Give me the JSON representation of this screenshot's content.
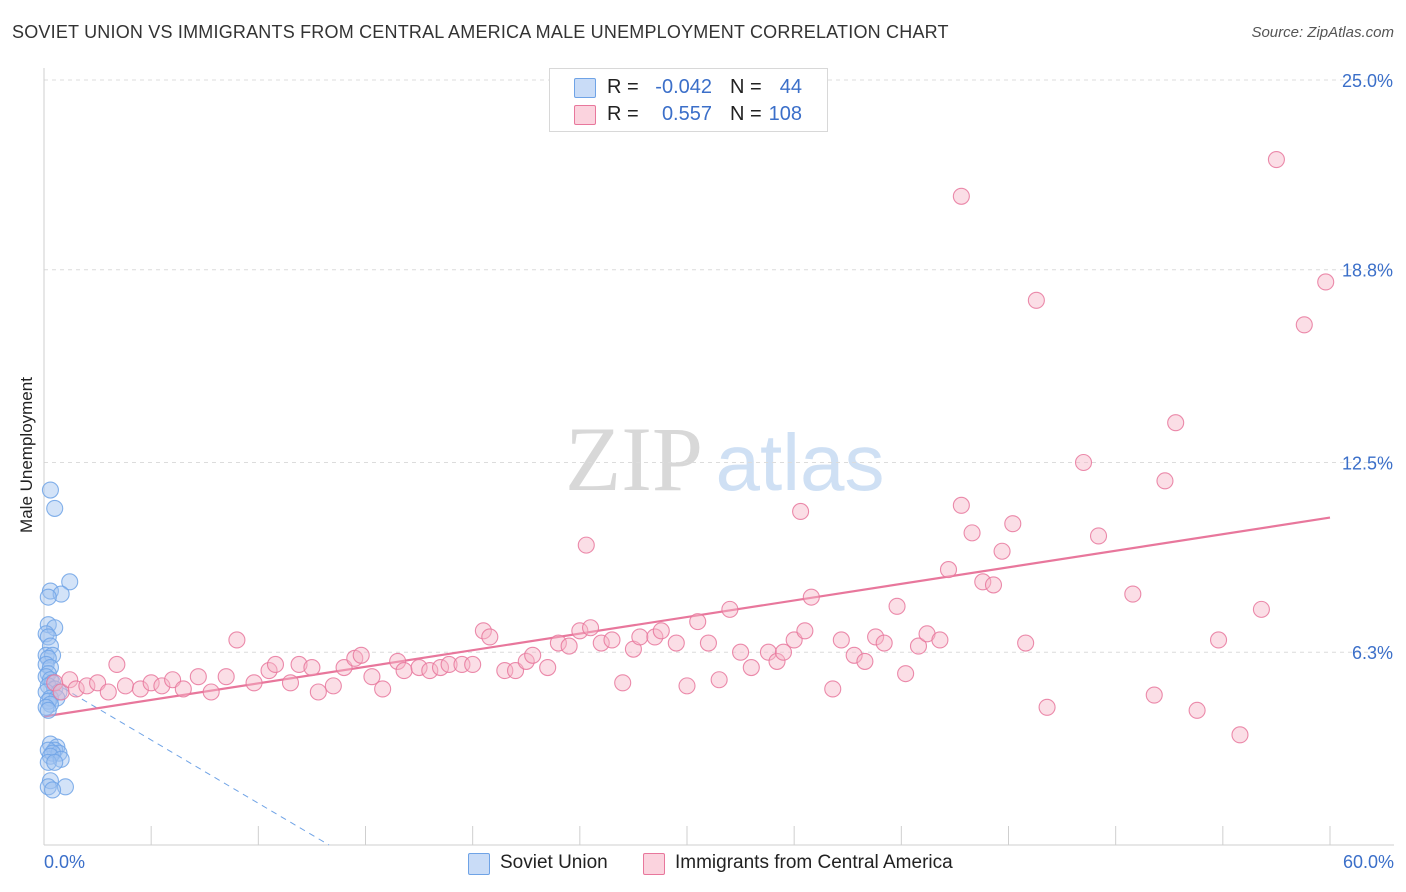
{
  "title": "SOVIET UNION VS IMMIGRANTS FROM CENTRAL AMERICA MALE UNEMPLOYMENT CORRELATION CHART",
  "source": "Source: ZipAtlas.com",
  "watermark": {
    "zip": "ZIP",
    "atlas": "atlas"
  },
  "legend": {
    "rows": [
      {
        "r_label": "R =",
        "r_value": "-0.042",
        "n_label": "N =",
        "n_value": "44",
        "color": "#9ec2f0"
      },
      {
        "r_label": "R =",
        "r_value": "0.557",
        "n_label": "N =",
        "n_value": "108",
        "color": "#f6b6c8"
      }
    ]
  },
  "bottom_legend": [
    {
      "label": "Soviet Union",
      "color": "#9ec2f0"
    },
    {
      "label": "Immigrants from Central America",
      "color": "#f6b6c8"
    }
  ],
  "chart_data": {
    "type": "scatter",
    "title": "SOVIET UNION VS IMMIGRANTS FROM CENTRAL AMERICA MALE UNEMPLOYMENT CORRELATION CHART",
    "xlabel": "",
    "ylabel": "Male Unemployment",
    "xlim": [
      0,
      60
    ],
    "ylim": [
      0,
      25.0
    ],
    "x_tick_labels": [
      "0.0%",
      "60.0%"
    ],
    "y_ticks": [
      6.3,
      12.5,
      18.8,
      25.0
    ],
    "y_tick_labels": [
      "6.3%",
      "12.5%",
      "18.8%",
      "25.0%"
    ],
    "grid": true,
    "series": [
      {
        "name": "Soviet Union",
        "color": "#6fa3e6",
        "fill": "#9ec2f0",
        "trend": {
          "x": [
            0.0,
            13.3
          ],
          "y": [
            5.5,
            0.0
          ],
          "style": "dashed"
        },
        "points": [
          [
            0.3,
            11.6
          ],
          [
            0.5,
            11.0
          ],
          [
            1.2,
            8.6
          ],
          [
            0.3,
            8.3
          ],
          [
            0.8,
            8.2
          ],
          [
            0.2,
            8.1
          ],
          [
            0.2,
            7.2
          ],
          [
            0.5,
            7.1
          ],
          [
            0.1,
            6.9
          ],
          [
            0.2,
            6.8
          ],
          [
            0.3,
            6.5
          ],
          [
            0.1,
            6.2
          ],
          [
            0.4,
            6.2
          ],
          [
            0.2,
            6.1
          ],
          [
            0.1,
            5.9
          ],
          [
            0.3,
            5.8
          ],
          [
            0.2,
            5.6
          ],
          [
            0.1,
            5.5
          ],
          [
            0.3,
            5.4
          ],
          [
            0.4,
            5.3
          ],
          [
            0.2,
            5.2
          ],
          [
            0.5,
            5.1
          ],
          [
            0.7,
            5.0
          ],
          [
            0.1,
            5.0
          ],
          [
            0.3,
            4.8
          ],
          [
            0.6,
            4.8
          ],
          [
            0.2,
            4.7
          ],
          [
            0.3,
            4.6
          ],
          [
            0.1,
            4.5
          ],
          [
            0.2,
            4.4
          ],
          [
            0.3,
            3.3
          ],
          [
            0.6,
            3.2
          ],
          [
            0.5,
            3.1
          ],
          [
            0.2,
            3.1
          ],
          [
            0.7,
            3.0
          ],
          [
            0.4,
            3.0
          ],
          [
            0.3,
            2.9
          ],
          [
            0.8,
            2.8
          ],
          [
            0.2,
            2.7
          ],
          [
            0.5,
            2.7
          ],
          [
            0.3,
            2.1
          ],
          [
            0.2,
            1.9
          ],
          [
            1.0,
            1.9
          ],
          [
            0.4,
            1.8
          ]
        ]
      },
      {
        "name": "Immigrants from Central America",
        "color": "#e8779c",
        "fill": "#f6b6c8",
        "trend": {
          "x": [
            0.0,
            60.0
          ],
          "y": [
            4.2,
            10.7
          ],
          "style": "solid"
        },
        "points": [
          [
            0.5,
            5.3
          ],
          [
            0.8,
            5.0
          ],
          [
            1.2,
            5.4
          ],
          [
            1.5,
            5.1
          ],
          [
            2.0,
            5.2
          ],
          [
            2.5,
            5.3
          ],
          [
            3.0,
            5.0
          ],
          [
            3.4,
            5.9
          ],
          [
            3.8,
            5.2
          ],
          [
            4.5,
            5.1
          ],
          [
            5.0,
            5.3
          ],
          [
            5.5,
            5.2
          ],
          [
            6.0,
            5.4
          ],
          [
            6.5,
            5.1
          ],
          [
            7.2,
            5.5
          ],
          [
            7.8,
            5.0
          ],
          [
            8.5,
            5.5
          ],
          [
            9.0,
            6.7
          ],
          [
            9.8,
            5.3
          ],
          [
            10.5,
            5.7
          ],
          [
            10.8,
            5.9
          ],
          [
            11.5,
            5.3
          ],
          [
            11.9,
            5.9
          ],
          [
            12.5,
            5.8
          ],
          [
            12.8,
            5.0
          ],
          [
            13.5,
            5.2
          ],
          [
            14.0,
            5.8
          ],
          [
            14.5,
            6.1
          ],
          [
            14.8,
            6.2
          ],
          [
            15.3,
            5.5
          ],
          [
            15.8,
            5.1
          ],
          [
            16.5,
            6.0
          ],
          [
            16.8,
            5.7
          ],
          [
            17.5,
            5.8
          ],
          [
            18.0,
            5.7
          ],
          [
            18.5,
            5.8
          ],
          [
            18.9,
            5.9
          ],
          [
            19.5,
            5.9
          ],
          [
            20.0,
            5.9
          ],
          [
            20.5,
            7.0
          ],
          [
            20.8,
            6.8
          ],
          [
            21.5,
            5.7
          ],
          [
            22.0,
            5.7
          ],
          [
            22.5,
            6.0
          ],
          [
            22.8,
            6.2
          ],
          [
            23.5,
            5.8
          ],
          [
            24.0,
            6.6
          ],
          [
            24.5,
            6.5
          ],
          [
            25.0,
            7.0
          ],
          [
            25.5,
            7.1
          ],
          [
            25.3,
            9.8
          ],
          [
            26.0,
            6.6
          ],
          [
            26.5,
            6.7
          ],
          [
            27.0,
            5.3
          ],
          [
            27.5,
            6.4
          ],
          [
            27.8,
            6.8
          ],
          [
            28.5,
            6.8
          ],
          [
            28.8,
            7.0
          ],
          [
            29.5,
            6.6
          ],
          [
            30.0,
            5.2
          ],
          [
            30.5,
            7.3
          ],
          [
            31.0,
            6.6
          ],
          [
            31.5,
            5.4
          ],
          [
            32.0,
            7.7
          ],
          [
            32.5,
            6.3
          ],
          [
            33.0,
            5.8
          ],
          [
            33.8,
            6.3
          ],
          [
            34.2,
            6.0
          ],
          [
            34.5,
            6.3
          ],
          [
            35.0,
            6.7
          ],
          [
            35.5,
            7.0
          ],
          [
            35.3,
            10.9
          ],
          [
            35.8,
            8.1
          ],
          [
            36.8,
            5.1
          ],
          [
            37.2,
            6.7
          ],
          [
            37.8,
            6.2
          ],
          [
            38.3,
            6.0
          ],
          [
            38.8,
            6.8
          ],
          [
            39.2,
            6.6
          ],
          [
            39.8,
            7.8
          ],
          [
            40.2,
            5.6
          ],
          [
            40.8,
            6.5
          ],
          [
            41.2,
            6.9
          ],
          [
            41.8,
            6.7
          ],
          [
            42.2,
            9.0
          ],
          [
            42.8,
            11.1
          ],
          [
            42.8,
            21.2
          ],
          [
            43.3,
            10.2
          ],
          [
            43.8,
            8.6
          ],
          [
            44.3,
            8.5
          ],
          [
            44.7,
            9.6
          ],
          [
            45.2,
            10.5
          ],
          [
            45.8,
            6.6
          ],
          [
            46.3,
            17.8
          ],
          [
            46.8,
            4.5
          ],
          [
            48.5,
            12.5
          ],
          [
            49.2,
            10.1
          ],
          [
            50.8,
            8.2
          ],
          [
            51.8,
            4.9
          ],
          [
            52.3,
            11.9
          ],
          [
            52.8,
            13.8
          ],
          [
            53.8,
            4.4
          ],
          [
            54.8,
            6.7
          ],
          [
            55.8,
            3.6
          ],
          [
            56.8,
            7.7
          ],
          [
            57.5,
            22.4
          ],
          [
            58.8,
            17.0
          ],
          [
            59.8,
            18.4
          ]
        ]
      }
    ]
  }
}
